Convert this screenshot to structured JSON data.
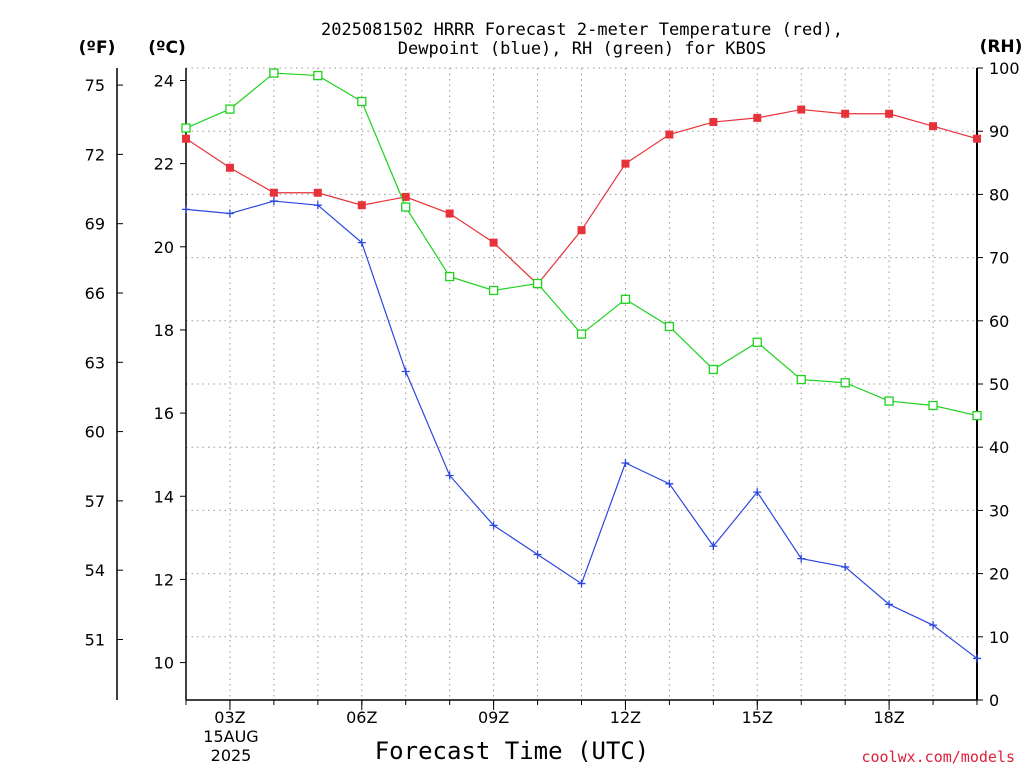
{
  "chart_data": {
    "type": "line",
    "title_line1": "2025081502 HRRR Forecast 2-meter Temperature (red),",
    "title_line2": "Dewpoint (blue), RH (green) for KBOS",
    "left_outer_unit": "(ºF)",
    "left_inner_unit": "(ºC)",
    "right_unit": "(RH)",
    "xlabel": "Forecast Time (UTC)",
    "credit": "coolwx.com/models",
    "x_hours": [
      2,
      3,
      4,
      5,
      6,
      7,
      8,
      9,
      10,
      11,
      12,
      13,
      14,
      15,
      16,
      17,
      18,
      19,
      20
    ],
    "xlim": [
      2,
      20
    ],
    "x_ticks": [
      {
        "hour": 3,
        "label": "03Z"
      },
      {
        "hour": 6,
        "label": "06Z"
      },
      {
        "hour": 9,
        "label": "09Z"
      },
      {
        "hour": 12,
        "label": "12Z"
      },
      {
        "hour": 15,
        "label": "15Z"
      },
      {
        "hour": 18,
        "label": "18Z"
      }
    ],
    "date_label_line1": "15AUG",
    "date_label_line2": "2025",
    "celsius_axis": {
      "range": [
        9.1,
        24.3
      ],
      "ticks": [
        10,
        12,
        14,
        16,
        18,
        20,
        22,
        24
      ]
    },
    "fahrenheit_axis": {
      "ticks": [
        51,
        54,
        57,
        60,
        63,
        66,
        69,
        72,
        75
      ]
    },
    "rh_axis": {
      "range": [
        0,
        100
      ],
      "ticks": [
        0,
        10,
        20,
        30,
        40,
        50,
        60,
        70,
        80,
        90,
        100
      ]
    },
    "grid": true,
    "series": [
      {
        "name": "Temperature",
        "color": "#e8323a",
        "marker": "filled-square",
        "axis": "celsius",
        "values": [
          22.6,
          21.9,
          21.3,
          21.3,
          21.0,
          21.2,
          20.8,
          20.1,
          19.1,
          20.4,
          22.0,
          22.7,
          23.0,
          23.1,
          23.3,
          23.2,
          23.2,
          22.9,
          22.6
        ]
      },
      {
        "name": "Dewpoint",
        "color": "#2b47e0",
        "marker": "plus",
        "axis": "celsius",
        "values": [
          20.9,
          20.8,
          21.1,
          21.0,
          20.1,
          17.0,
          14.5,
          13.3,
          12.6,
          11.9,
          14.8,
          14.3,
          12.8,
          14.1,
          12.5,
          12.3,
          11.4,
          10.9,
          10.1
        ]
      },
      {
        "name": "RH",
        "color": "#1ed21e",
        "marker": "open-square",
        "axis": "rh",
        "values": [
          90.5,
          93.5,
          99.2,
          98.8,
          94.7,
          78.0,
          67.0,
          64.8,
          65.9,
          57.9,
          63.4,
          59.1,
          52.3,
          56.6,
          50.7,
          50.2,
          47.3,
          46.6,
          45.0
        ]
      }
    ]
  }
}
